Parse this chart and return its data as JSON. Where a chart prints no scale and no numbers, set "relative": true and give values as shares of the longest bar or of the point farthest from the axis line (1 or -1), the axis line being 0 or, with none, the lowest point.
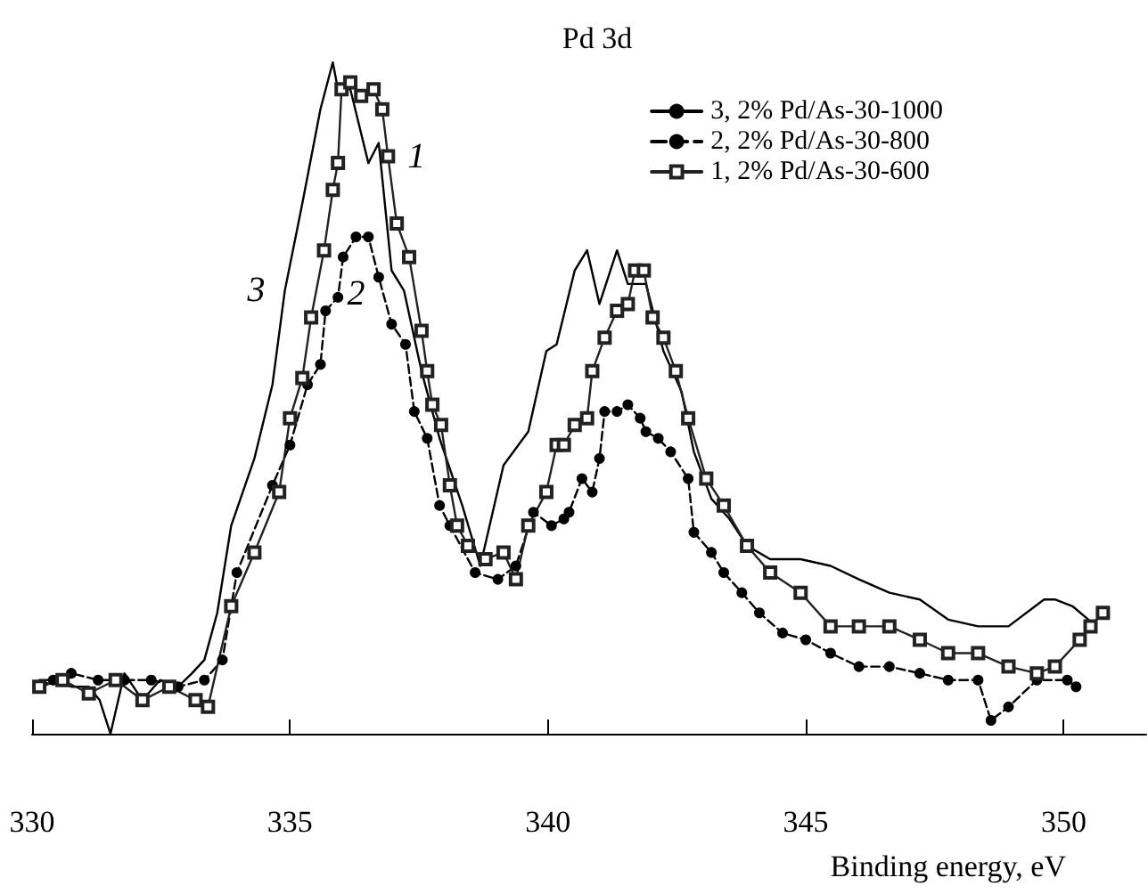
{
  "chart_data": {
    "type": "line",
    "title": "Pd 3d",
    "xlabel": "Binding energy, eV",
    "relative": true,
    "xlim": [
      330,
      351.6
    ],
    "xticks": [
      330,
      335,
      340,
      345,
      350
    ],
    "legend": "top right",
    "grid": false,
    "annotations": [
      {
        "text": "1",
        "x": 336.9,
        "y": 0.86
      },
      {
        "text": "2",
        "x": 336.28,
        "y": 0.74
      },
      {
        "text": "3",
        "x": 334.9,
        "y": 0.66
      }
    ],
    "series": [
      {
        "name": "3, 2% Pd/As-30-1000",
        "color": "#000000",
        "marker": "none",
        "line_style": "solid",
        "x": [
          330.14,
          330.41,
          330.76,
          331.1,
          331.31,
          331.52,
          331.79,
          332.14,
          332.48,
          332.83,
          333.1,
          333.34,
          333.59,
          333.86,
          334.31,
          334.66,
          334.9,
          335.24,
          335.59,
          335.83,
          335.93,
          336.17,
          336.52,
          336.72,
          336.97,
          337.21,
          337.55,
          337.9,
          338.34,
          338.69,
          339.14,
          339.62,
          339.97,
          340.17,
          340.52,
          340.76,
          341.0,
          341.34,
          341.55,
          341.9,
          342.24,
          342.59,
          342.83,
          343.17,
          343.52,
          343.86,
          344.31,
          344.9,
          345.48,
          346.03,
          346.62,
          347.21,
          347.76,
          348.34,
          348.93,
          349.62,
          349.83,
          350.17,
          350.48
        ],
        "values": [
          0.08,
          0.08,
          0.07,
          0.07,
          0.05,
          0,
          0.09,
          0.05,
          0.08,
          0.07,
          0.09,
          0.11,
          0.18,
          0.31,
          0.41,
          0.52,
          0.66,
          0.79,
          0.93,
          1,
          0.96,
          0.96,
          0.85,
          0.88,
          0.69,
          0.66,
          0.54,
          0.44,
          0.34,
          0.25,
          0.4,
          0.45,
          0.57,
          0.58,
          0.69,
          0.72,
          0.64,
          0.72,
          0.67,
          0.67,
          0.57,
          0.51,
          0.42,
          0.35,
          0.32,
          0.28,
          0.26,
          0.26,
          0.25,
          0.23,
          0.21,
          0.2,
          0.17,
          0.16,
          0.16,
          0.2,
          0.2,
          0.19,
          0.17
        ]
      },
      {
        "name": "2, 2% Pd/As-30-800",
        "color": "#000000",
        "marker": "circle",
        "line_style": "dashed",
        "x": [
          330.14,
          330.41,
          330.76,
          331.28,
          331.79,
          332.31,
          332.83,
          333.34,
          333.69,
          333.97,
          334.66,
          335.0,
          335.34,
          335.59,
          335.69,
          335.93,
          336.03,
          336.28,
          336.52,
          336.72,
          336.97,
          337.24,
          337.41,
          337.66,
          337.9,
          338.1,
          338.59,
          339.03,
          339.38,
          339.72,
          340.07,
          340.31,
          340.41,
          340.66,
          340.86,
          341.0,
          341.1,
          341.34,
          341.55,
          341.79,
          341.9,
          342.14,
          342.38,
          342.72,
          342.83,
          343.17,
          343.41,
          343.76,
          344.1,
          344.55,
          345.0,
          345.48,
          346.03,
          346.62,
          347.21,
          347.76,
          348.34,
          348.59,
          348.93,
          349.48,
          350.07,
          350.24
        ],
        "values": [
          0.07,
          0.08,
          0.09,
          0.08,
          0.08,
          0.08,
          0.07,
          0.08,
          0.11,
          0.24,
          0.37,
          0.43,
          0.52,
          0.55,
          0.63,
          0.65,
          0.71,
          0.74,
          0.74,
          0.68,
          0.61,
          0.58,
          0.48,
          0.44,
          0.34,
          0.31,
          0.24,
          0.23,
          0.25,
          0.33,
          0.31,
          0.32,
          0.33,
          0.38,
          0.36,
          0.41,
          0.48,
          0.48,
          0.49,
          0.47,
          0.45,
          0.44,
          0.42,
          0.38,
          0.3,
          0.27,
          0.24,
          0.21,
          0.18,
          0.15,
          0.14,
          0.12,
          0.1,
          0.1,
          0.09,
          0.08,
          0.08,
          0.02,
          0.04,
          0.08,
          0.08,
          0.07
        ]
      },
      {
        "name": "1, 2% Pd/As-30-600",
        "color": "#222222",
        "marker": "square",
        "line_style": "solid",
        "x": [
          330.14,
          330.59,
          331.1,
          331.62,
          332.14,
          332.66,
          333.17,
          333.41,
          333.86,
          334.31,
          334.79,
          335.0,
          335.24,
          335.41,
          335.66,
          335.83,
          335.93,
          336.0,
          336.17,
          336.38,
          336.62,
          336.79,
          336.9,
          337.07,
          337.31,
          337.55,
          337.66,
          337.76,
          337.93,
          338.1,
          338.24,
          338.45,
          338.79,
          339.14,
          339.38,
          339.62,
          339.97,
          340.17,
          340.31,
          340.52,
          340.76,
          340.86,
          341.1,
          341.34,
          341.55,
          341.69,
          341.86,
          342.03,
          342.24,
          342.48,
          342.72,
          343.07,
          343.41,
          343.86,
          344.31,
          344.9,
          345.48,
          346.03,
          346.62,
          347.21,
          347.76,
          348.34,
          348.93,
          349.48,
          349.83,
          350.31,
          350.52,
          350.76
        ],
        "values": [
          0.07,
          0.08,
          0.06,
          0.08,
          0.05,
          0.07,
          0.05,
          0.04,
          0.19,
          0.27,
          0.36,
          0.47,
          0.53,
          0.62,
          0.72,
          0.81,
          0.85,
          0.96,
          0.97,
          0.95,
          0.96,
          0.93,
          0.86,
          0.76,
          0.71,
          0.6,
          0.54,
          0.49,
          0.46,
          0.37,
          0.31,
          0.28,
          0.26,
          0.27,
          0.23,
          0.31,
          0.36,
          0.43,
          0.43,
          0.46,
          0.47,
          0.54,
          0.59,
          0.63,
          0.64,
          0.69,
          0.69,
          0.62,
          0.59,
          0.54,
          0.47,
          0.38,
          0.34,
          0.28,
          0.24,
          0.21,
          0.16,
          0.16,
          0.16,
          0.14,
          0.12,
          0.12,
          0.1,
          0.09,
          0.1,
          0.14,
          0.16,
          0.18
        ]
      }
    ]
  }
}
